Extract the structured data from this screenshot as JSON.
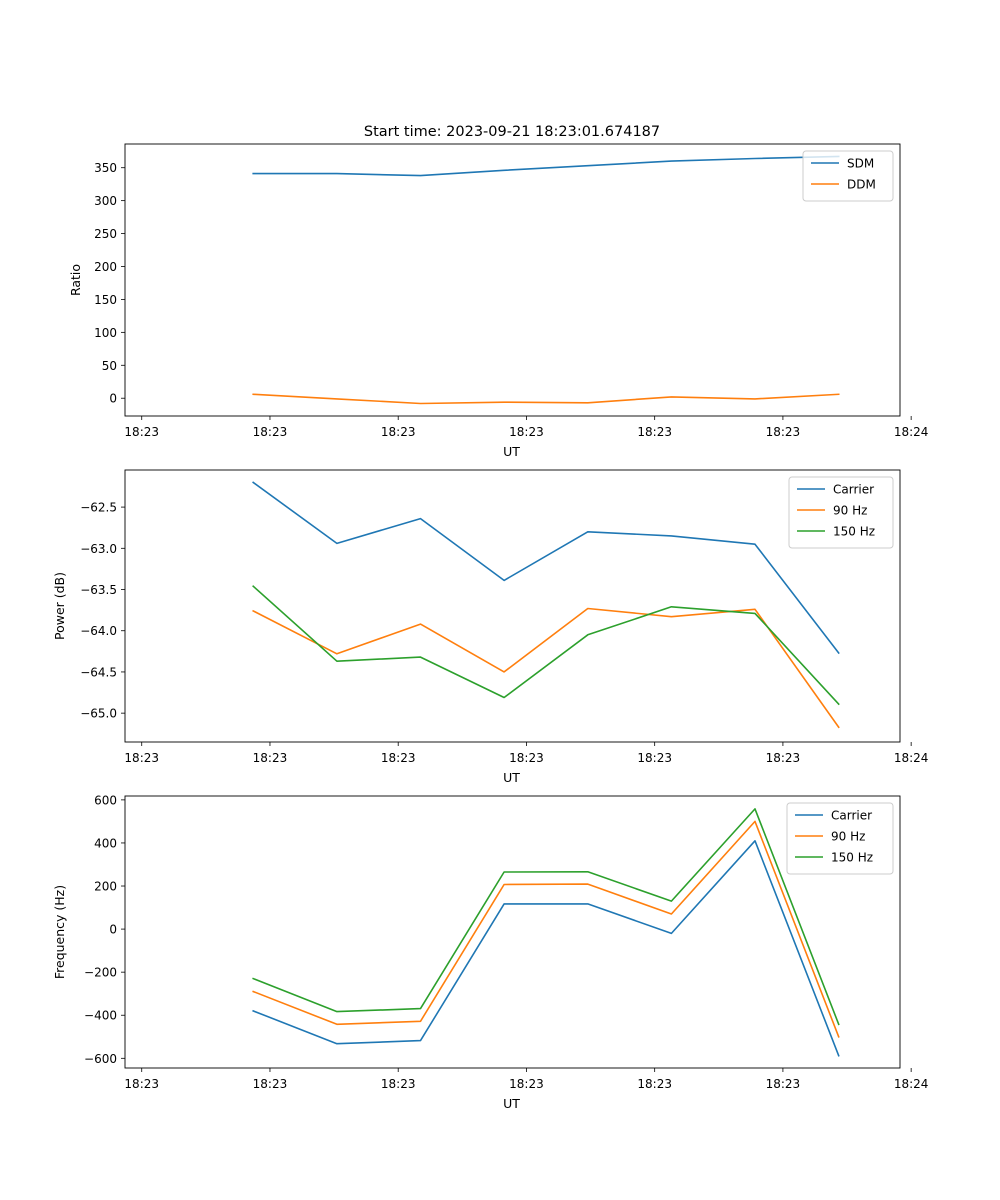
{
  "figure": {
    "title": "Start time: 2023-09-21 18:23:01.674187"
  },
  "colors": {
    "blue": "#1f77b4",
    "orange": "#ff7f0e",
    "green": "#2ca02c"
  },
  "chart_data": [
    {
      "type": "line",
      "title": "Start time: 2023-09-21 18:23:01.674187",
      "xlabel": "UT",
      "ylabel": "Ratio",
      "xlim": [
        -0.23,
        1.16
      ],
      "ylim": [
        -27,
        386
      ],
      "x": [
        0,
        0.15,
        0.3,
        0.45,
        0.6,
        0.75,
        0.9,
        1.05
      ],
      "xticks": [
        -0.2,
        0.03,
        0.26,
        0.49,
        0.72,
        0.95,
        1.18
      ],
      "xtick_labels": [
        "18:23",
        "18:23",
        "18:23",
        "18:23",
        "18:23",
        "18:23",
        "18:24"
      ],
      "yticks": [
        0,
        50,
        100,
        150,
        200,
        250,
        300,
        350
      ],
      "ytick_labels": [
        "0",
        "50",
        "100",
        "150",
        "200",
        "250",
        "300",
        "350"
      ],
      "legend_position": "top-right",
      "series": [
        {
          "name": "SDM",
          "color": "#1f77b4",
          "values": [
            341,
            341,
            338,
            346,
            353,
            360,
            364,
            367
          ]
        },
        {
          "name": "DDM",
          "color": "#ff7f0e",
          "values": [
            6,
            -1,
            -8,
            -6,
            -7,
            2,
            -1,
            6
          ]
        }
      ]
    },
    {
      "type": "line",
      "title": "",
      "xlabel": "UT",
      "ylabel": "Power (dB)",
      "xlim": [
        -0.23,
        1.16
      ],
      "ylim": [
        -65.35,
        -62.05
      ],
      "x": [
        0,
        0.15,
        0.3,
        0.45,
        0.6,
        0.75,
        0.9,
        1.05
      ],
      "xticks": [
        -0.2,
        0.03,
        0.26,
        0.49,
        0.72,
        0.95,
        1.18
      ],
      "xtick_labels": [
        "18:23",
        "18:23",
        "18:23",
        "18:23",
        "18:23",
        "18:23",
        "18:24"
      ],
      "yticks": [
        -65.0,
        -64.5,
        -64.0,
        -63.5,
        -63.0,
        -62.5
      ],
      "ytick_labels": [
        "−65.0",
        "−64.5",
        "−64.0",
        "−63.5",
        "−63.0",
        "−62.5"
      ],
      "legend_position": "top-right",
      "series": [
        {
          "name": "Carrier",
          "color": "#1f77b4",
          "values": [
            -62.2,
            -62.94,
            -62.64,
            -63.39,
            -62.8,
            -62.85,
            -62.95,
            -64.27
          ]
        },
        {
          "name": "90 Hz",
          "color": "#ff7f0e",
          "values": [
            -63.76,
            -64.28,
            -63.92,
            -64.5,
            -63.73,
            -63.83,
            -63.74,
            -65.17
          ]
        },
        {
          "name": "150 Hz",
          "color": "#2ca02c",
          "values": [
            -63.46,
            -64.37,
            -64.32,
            -64.81,
            -64.05,
            -63.71,
            -63.79,
            -64.89
          ]
        }
      ]
    },
    {
      "type": "line",
      "title": "",
      "xlabel": "UT",
      "ylabel": "Frequency (Hz)",
      "xlim": [
        -0.23,
        1.16
      ],
      "ylim": [
        -645,
        618
      ],
      "x": [
        0,
        0.15,
        0.3,
        0.45,
        0.6,
        0.75,
        0.9,
        1.05
      ],
      "xticks": [
        -0.2,
        0.03,
        0.26,
        0.49,
        0.72,
        0.95,
        1.18
      ],
      "xtick_labels": [
        "18:23",
        "18:23",
        "18:23",
        "18:23",
        "18:23",
        "18:23",
        "18:24"
      ],
      "yticks": [
        -600,
        -400,
        -200,
        0,
        200,
        400,
        600
      ],
      "ytick_labels": [
        "−600",
        "−400",
        "−200",
        "0",
        "200",
        "400",
        "600"
      ],
      "legend_position": "top-right",
      "series": [
        {
          "name": "Carrier",
          "color": "#1f77b4",
          "values": [
            -380,
            -532,
            -518,
            117,
            117,
            -20,
            410,
            -588
          ]
        },
        {
          "name": "90 Hz",
          "color": "#ff7f0e",
          "values": [
            -290,
            -442,
            -428,
            207,
            209,
            70,
            500,
            -500
          ]
        },
        {
          "name": "150 Hz",
          "color": "#2ca02c",
          "values": [
            -230,
            -383,
            -369,
            265,
            266,
            130,
            558,
            -442
          ]
        }
      ]
    }
  ]
}
